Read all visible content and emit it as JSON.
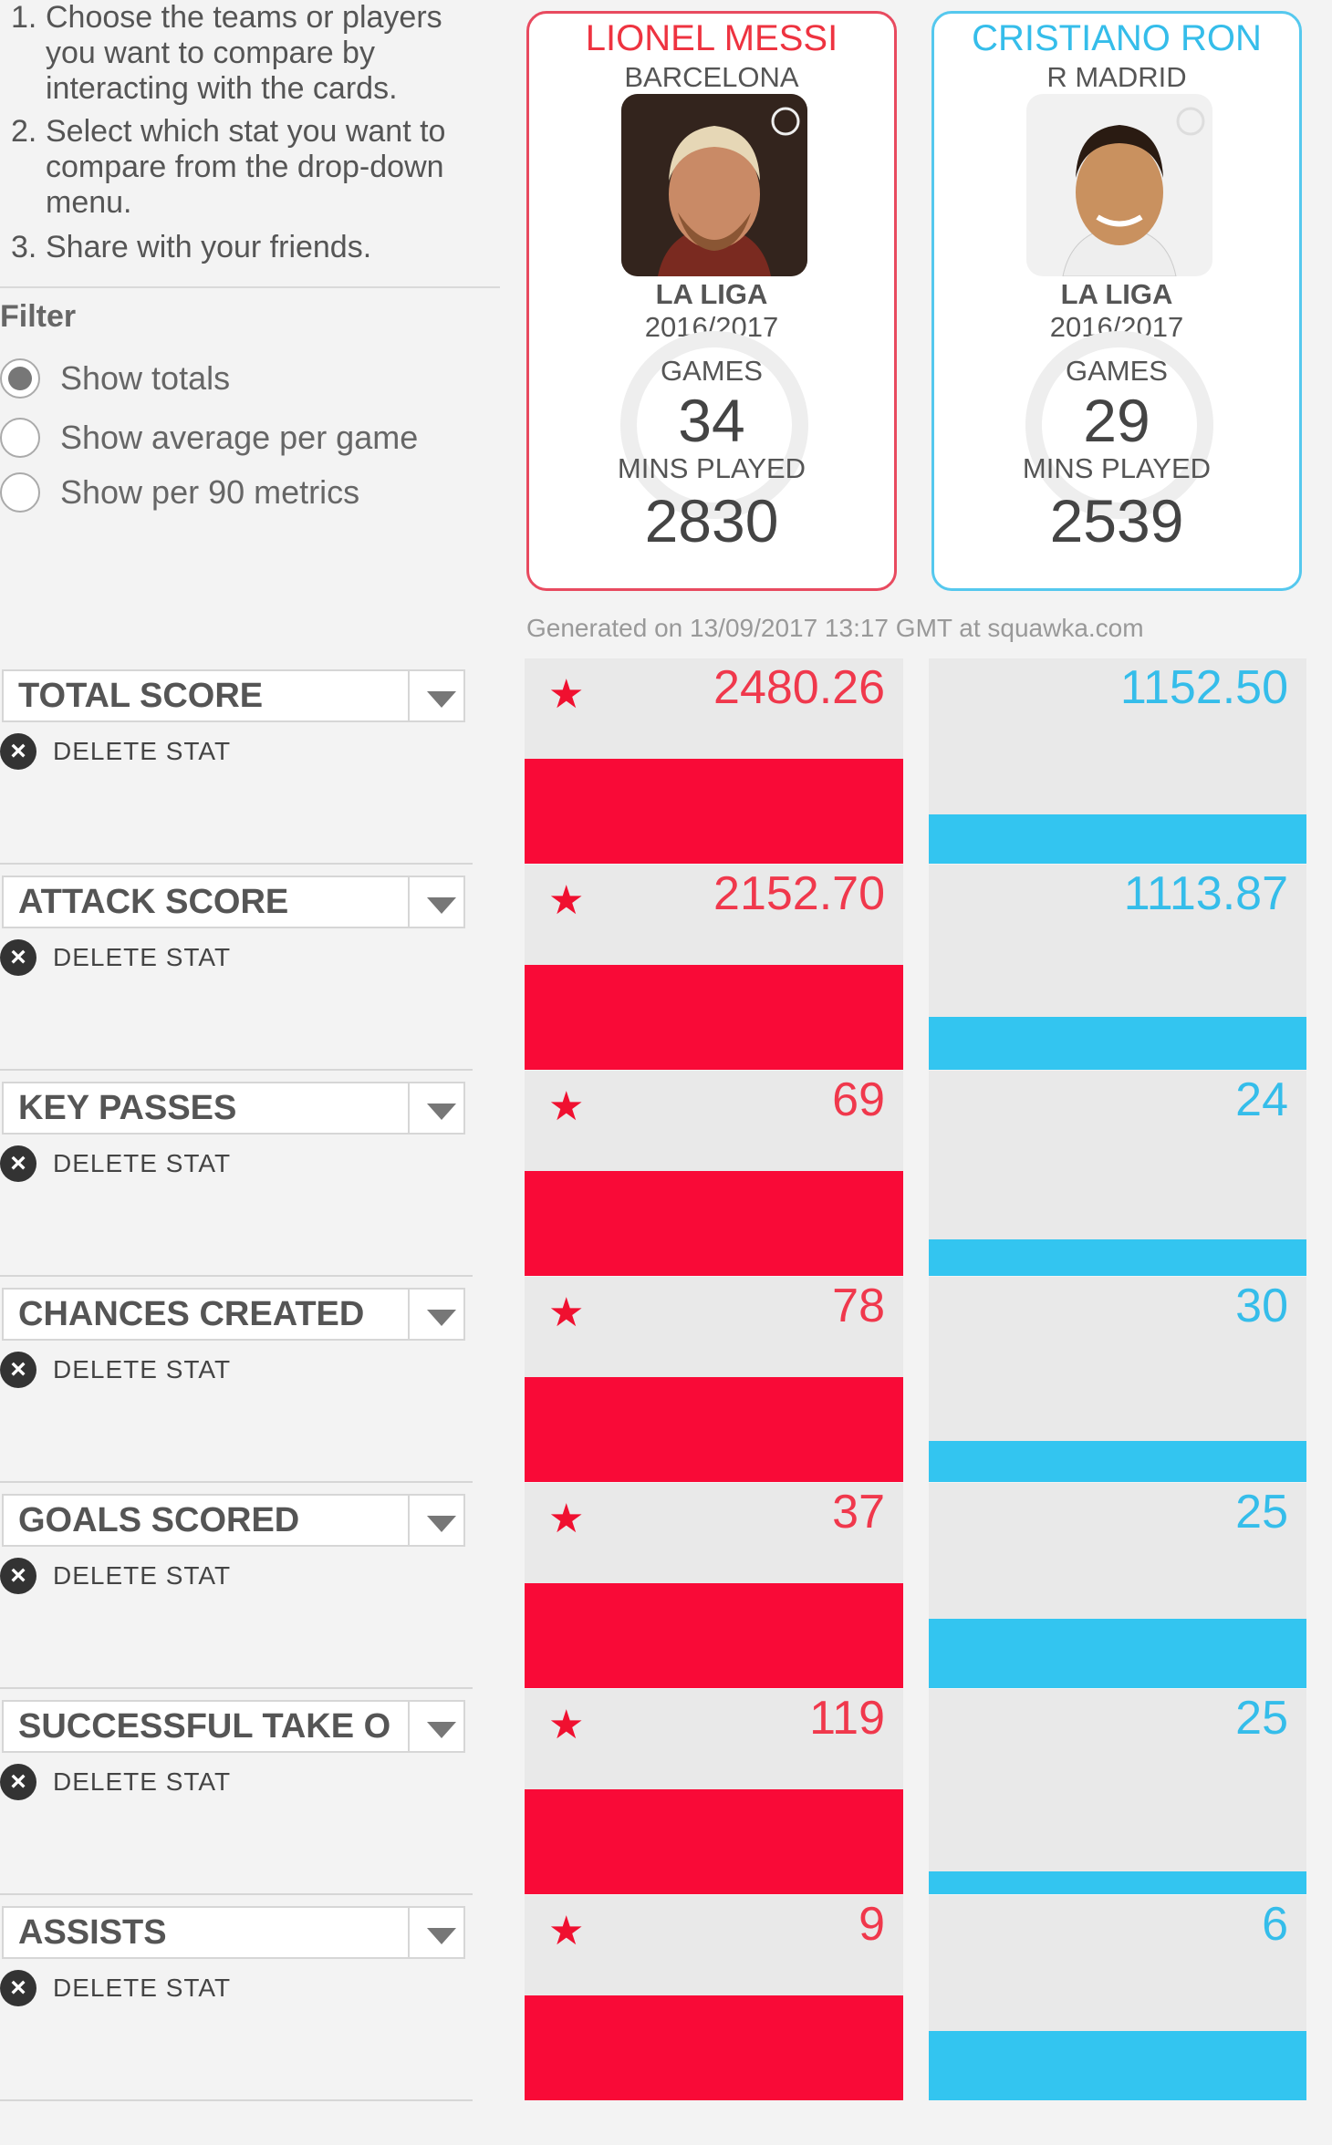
{
  "instructions": [
    {
      "num": "1.",
      "text": "Choose the teams or players you want to compare by interacting with the cards."
    },
    {
      "num": "2.",
      "text": "Select which stat you want to compare from the drop-down menu."
    },
    {
      "num": "3.",
      "text": "Share with your friends."
    }
  ],
  "filter": {
    "title": "Filter",
    "options": [
      {
        "label": "Show totals",
        "selected": true
      },
      {
        "label": "Show average per game",
        "selected": false
      },
      {
        "label": "Show per 90 metrics",
        "selected": false
      }
    ]
  },
  "players": [
    {
      "name": "LIONEL MESSI",
      "team": "BARCELONA",
      "league": "LA LIGA",
      "season": "2016/2017",
      "games_label": "GAMES",
      "games": "34",
      "mins_label": "MINS PLAYED",
      "mins": "2830",
      "color": "#ee3340"
    },
    {
      "name": "CRISTIANO RON",
      "team": "R MADRID",
      "league": "LA LIGA",
      "season": "2016/2017",
      "games_label": "GAMES",
      "games": "29",
      "mins_label": "MINS PLAYED",
      "mins": "2539",
      "color": "#35bdea"
    }
  ],
  "generated_text": "Generated on 13/09/2017 13:17 GMT at squawka.com",
  "delete_label": "DELETE STAT",
  "stats": [
    {
      "label": "TOTAL SCORE",
      "p1": "2480.26",
      "p2": "1152.50",
      "p1_fill": 0.51,
      "p2_fill": 0.24
    },
    {
      "label": "ATTACK SCORE",
      "p1": "2152.70",
      "p2": "1113.87",
      "p1_fill": 0.51,
      "p2_fill": 0.26
    },
    {
      "label": "KEY PASSES",
      "p1": "69",
      "p2": "24",
      "p1_fill": 0.51,
      "p2_fill": 0.18
    },
    {
      "label": "CHANCES CREATED",
      "p1": "78",
      "p2": "30",
      "p1_fill": 0.51,
      "p2_fill": 0.2
    },
    {
      "label": "GOALS SCORED",
      "p1": "37",
      "p2": "25",
      "p1_fill": 0.51,
      "p2_fill": 0.34
    },
    {
      "label": "SUCCESSFUL TAKE O",
      "p1": "119",
      "p2": "25",
      "p1_fill": 0.51,
      "p2_fill": 0.11
    },
    {
      "label": "ASSISTS",
      "p1": "9",
      "p2": "6",
      "p1_fill": 0.51,
      "p2_fill": 0.34
    }
  ]
}
